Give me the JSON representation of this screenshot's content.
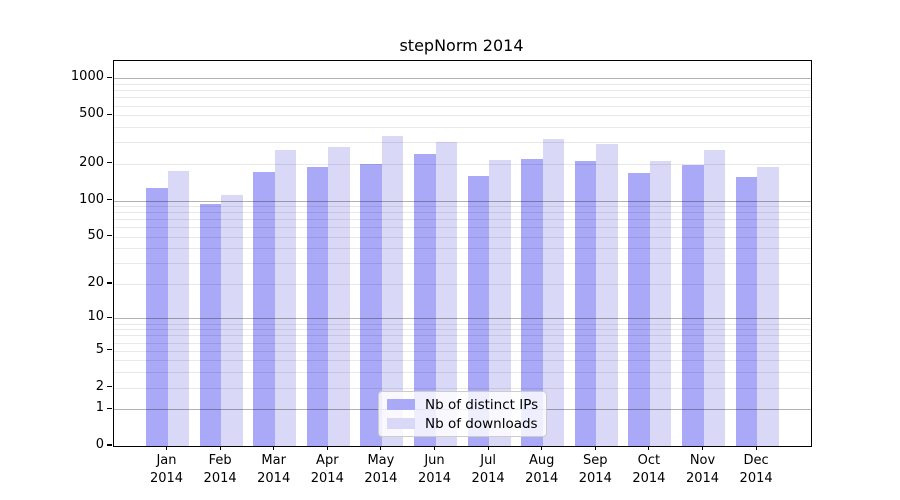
{
  "title": "stepNorm 2014",
  "chart_data": {
    "type": "bar",
    "title": "stepNorm 2014",
    "categories": [
      "Jan",
      "Feb",
      "Mar",
      "Apr",
      "May",
      "Jun",
      "Jul",
      "Aug",
      "Sep",
      "Oct",
      "Nov",
      "Dec"
    ],
    "x_tick_line2": "2014",
    "series": [
      {
        "name": "Nb of distinct IPs",
        "color": "#a9a9f7",
        "values": [
          128,
          93,
          172,
          188,
          200,
          240,
          159,
          218,
          212,
          169,
          197,
          157
        ]
      },
      {
        "name": "Nb of downloads",
        "color": "#d9d9f7",
        "values": [
          175,
          112,
          258,
          274,
          341,
          305,
          215,
          320,
          290,
          212,
          258,
          190
        ]
      }
    ],
    "y_ticks": [
      0,
      1,
      2,
      5,
      10,
      20,
      50,
      100,
      200,
      500,
      1000
    ],
    "y_scale": "log10(1+x)",
    "ylim": [
      0,
      1320
    ],
    "grid": "horizontal, light minors at 2-9 per decade, darker lines at powers of 10",
    "legend_position": "lower center inside plot"
  },
  "colors": {
    "bar_distinct_ips": "#a9a9f7",
    "bar_downloads": "#d9d9f7",
    "axis": "#000000",
    "background": "#ffffff"
  }
}
